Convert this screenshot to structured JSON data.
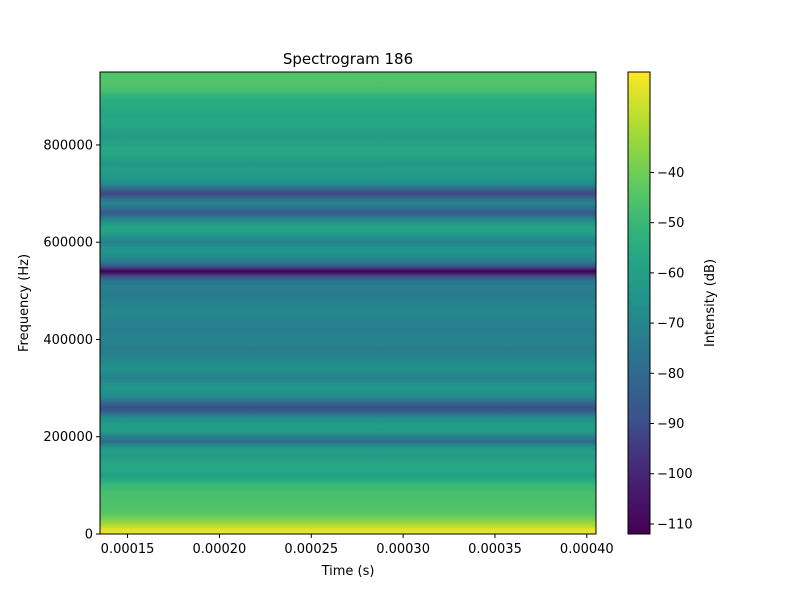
{
  "chart_data": {
    "type": "heatmap",
    "title": "Spectrogram 186",
    "xlabel": "Time (s)",
    "ylabel": "Frequency (Hz)",
    "xlim": [
      0.000135,
      0.000405
    ],
    "ylim": [
      0,
      950000
    ],
    "x_ticks": [
      0.00015,
      0.0002,
      0.00025,
      0.0003,
      0.00035,
      0.0004
    ],
    "x_tick_labels": [
      "0.00015",
      "0.00020",
      "0.00025",
      "0.00030",
      "0.00035",
      "0.00040"
    ],
    "y_ticks": [
      0,
      200000,
      400000,
      600000,
      800000
    ],
    "y_tick_labels": [
      "0",
      "200000",
      "400000",
      "600000",
      "800000"
    ],
    "colormap": "viridis",
    "colorbar": {
      "label": "Intensity (dB)",
      "range": [
        -112,
        -20
      ],
      "ticks": [
        -40,
        -50,
        -60,
        -70,
        -80,
        -90,
        -100,
        -110
      ],
      "tick_labels": [
        "−40",
        "−50",
        "−60",
        "−70",
        "−80",
        "−90",
        "−100",
        "−110"
      ]
    },
    "frequency_profile": {
      "frequency_hz": [
        0,
        10000,
        20000,
        30000,
        40000,
        50000,
        60000,
        70000,
        80000,
        90000,
        100000,
        110000,
        120000,
        130000,
        140000,
        150000,
        160000,
        170000,
        180000,
        190000,
        200000,
        210000,
        220000,
        230000,
        240000,
        250000,
        260000,
        270000,
        280000,
        290000,
        300000,
        310000,
        320000,
        330000,
        340000,
        350000,
        360000,
        370000,
        380000,
        390000,
        400000,
        410000,
        420000,
        430000,
        440000,
        450000,
        460000,
        470000,
        480000,
        490000,
        500000,
        510000,
        520000,
        530000,
        540000,
        550000,
        560000,
        570000,
        580000,
        590000,
        600000,
        610000,
        620000,
        630000,
        640000,
        650000,
        660000,
        670000,
        680000,
        690000,
        700000,
        710000,
        720000,
        730000,
        740000,
        750000,
        760000,
        770000,
        780000,
        790000,
        800000,
        810000,
        820000,
        830000,
        840000,
        850000,
        860000,
        870000,
        880000,
        890000,
        900000,
        910000,
        920000,
        930000,
        940000,
        950000
      ],
      "intensity_db": [
        -22,
        -24,
        -32,
        -38,
        -43,
        -45,
        -46,
        -46,
        -47,
        -48,
        -50,
        -54,
        -60,
        -57,
        -56,
        -58,
        -62,
        -60,
        -66,
        -80,
        -72,
        -62,
        -60,
        -64,
        -68,
        -82,
        -90,
        -80,
        -70,
        -66,
        -64,
        -66,
        -72,
        -68,
        -66,
        -68,
        -70,
        -72,
        -73,
        -72,
        -71,
        -72,
        -73,
        -72,
        -71,
        -70,
        -70,
        -71,
        -72,
        -74,
        -73,
        -72,
        -76,
        -90,
        -112,
        -88,
        -74,
        -68,
        -64,
        -66,
        -72,
        -66,
        -60,
        -58,
        -64,
        -74,
        -86,
        -78,
        -70,
        -80,
        -92,
        -80,
        -68,
        -64,
        -62,
        -60,
        -64,
        -60,
        -57,
        -56,
        -58,
        -60,
        -62,
        -60,
        -57,
        -56,
        -58,
        -56,
        -54,
        -54,
        -52,
        -48,
        -46,
        -45,
        -45,
        -45
      ]
    }
  }
}
